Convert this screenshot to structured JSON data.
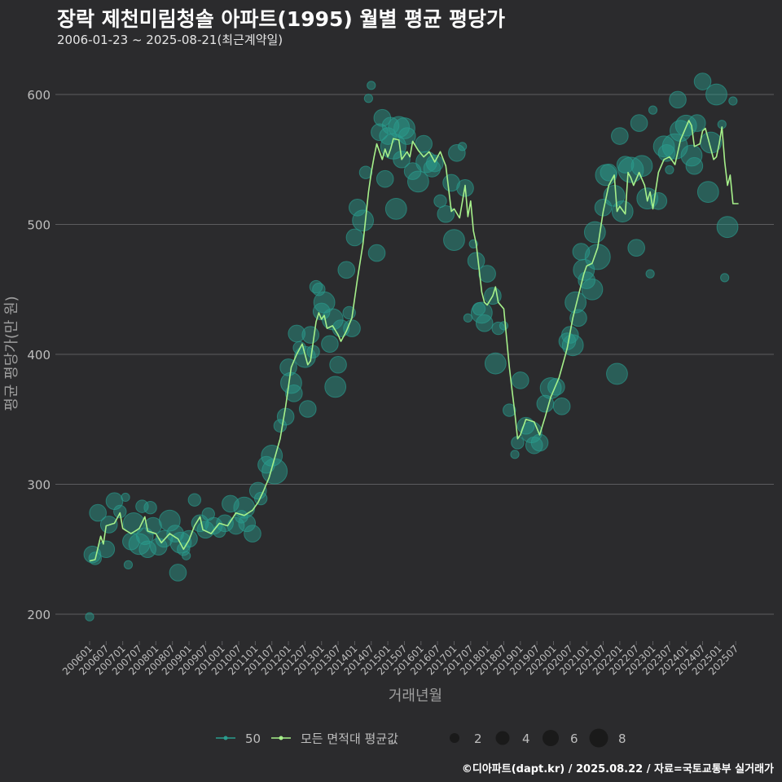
{
  "header": {
    "title": "장락 제천미림청솔 아파트(1995) 월별 평균 평당가",
    "subtitle": "2006-01-23 ~ 2025-08-21(최근계약일)"
  },
  "footer": {
    "credit": "©디아파트(dapt.kr) / 2025.08.22 / 자료=국토교통부 실거래가"
  },
  "colors": {
    "background": "#2b2b2d",
    "grid": "#5c5c5f",
    "line": "#a6f08a",
    "points": "#2a9d8f",
    "text": "#bdbdbd"
  },
  "chart_data": {
    "type": "line",
    "xlabel": "거래년월",
    "ylabel": "평균 평당가(만 원)",
    "ylim": [
      190,
      620
    ],
    "yticks": [
      200,
      300,
      400,
      500,
      600
    ],
    "grid": true,
    "legend_placement": "bottom",
    "x_tick_labels": [
      "200601",
      "200607",
      "200701",
      "200707",
      "200801",
      "200807",
      "200901",
      "200907",
      "201001",
      "201007",
      "201101",
      "201107",
      "201201",
      "201207",
      "201301",
      "201307",
      "201401",
      "201407",
      "201501",
      "201507",
      "201601",
      "201607",
      "201701",
      "201707",
      "201801",
      "201807",
      "201901",
      "201907",
      "202001",
      "202007",
      "202101",
      "202107",
      "202201",
      "202207",
      "202301",
      "202307",
      "202401",
      "202407",
      "202501",
      "202507"
    ],
    "legend": {
      "series": [
        {
          "label": "50",
          "kind": "points"
        },
        {
          "label": "모든 면적대 평균값",
          "kind": "line"
        }
      ],
      "size_title": "",
      "sizes": [
        2,
        4,
        6,
        8
      ]
    },
    "line_keypoints": [
      [
        "200601",
        241
      ],
      [
        "200603",
        242
      ],
      [
        "200605",
        260
      ],
      [
        "200606",
        254
      ],
      [
        "200607",
        268
      ],
      [
        "200610",
        270
      ],
      [
        "200612",
        278
      ],
      [
        "200701",
        266
      ],
      [
        "200704",
        262
      ],
      [
        "200707",
        266
      ],
      [
        "200709",
        275
      ],
      [
        "200710",
        264
      ],
      [
        "200801",
        262
      ],
      [
        "200803",
        255
      ],
      [
        "200806",
        262
      ],
      [
        "200809",
        258
      ],
      [
        "200811",
        250
      ],
      [
        "200901",
        257
      ],
      [
        "200903",
        268
      ],
      [
        "200905",
        275
      ],
      [
        "200906",
        265
      ],
      [
        "200909",
        262
      ],
      [
        "200912",
        270
      ],
      [
        "201003",
        268
      ],
      [
        "201006",
        278
      ],
      [
        "201009",
        276
      ],
      [
        "201012",
        280
      ],
      [
        "201102",
        286
      ],
      [
        "201104",
        295
      ],
      [
        "201106",
        305
      ],
      [
        "201108",
        320
      ],
      [
        "201110",
        335
      ],
      [
        "201112",
        360
      ],
      [
        "201202",
        390
      ],
      [
        "201204",
        400
      ],
      [
        "201206",
        408
      ],
      [
        "201208",
        392
      ],
      [
        "201209",
        395
      ],
      [
        "201211",
        425
      ],
      [
        "201212",
        432
      ],
      [
        "201301",
        427
      ],
      [
        "201302",
        430
      ],
      [
        "201303",
        420
      ],
      [
        "201305",
        422
      ],
      [
        "201307",
        415
      ],
      [
        "201308",
        410
      ],
      [
        "201310",
        418
      ],
      [
        "201312",
        428
      ],
      [
        "201402",
        458
      ],
      [
        "201404",
        485
      ],
      [
        "201406",
        525
      ],
      [
        "201407",
        540
      ],
      [
        "201408",
        552
      ],
      [
        "201409",
        562
      ],
      [
        "201410",
        556
      ],
      [
        "201411",
        550
      ],
      [
        "201412",
        558
      ],
      [
        "201501",
        552
      ],
      [
        "201502",
        558
      ],
      [
        "201503",
        566
      ],
      [
        "201505",
        565
      ],
      [
        "201506",
        550
      ],
      [
        "201507",
        553
      ],
      [
        "201508",
        556
      ],
      [
        "201509",
        552
      ],
      [
        "201510",
        564
      ],
      [
        "201512",
        557
      ],
      [
        "201602",
        552
      ],
      [
        "201604",
        556
      ],
      [
        "201606",
        548
      ],
      [
        "201608",
        556
      ],
      [
        "201610",
        545
      ],
      [
        "201612",
        510
      ],
      [
        "201701",
        512
      ],
      [
        "201703",
        505
      ],
      [
        "201705",
        530
      ],
      [
        "201706",
        506
      ],
      [
        "201707",
        518
      ],
      [
        "201708",
        495
      ],
      [
        "201709",
        485
      ],
      [
        "201711",
        448
      ],
      [
        "201712",
        440
      ],
      [
        "201801",
        438
      ],
      [
        "201803",
        445
      ],
      [
        "201804",
        452
      ],
      [
        "201805",
        440
      ],
      [
        "201807",
        435
      ],
      [
        "201809",
        390
      ],
      [
        "201811",
        355
      ],
      [
        "201812",
        335
      ],
      [
        "201901",
        338
      ],
      [
        "201903",
        350
      ],
      [
        "201906",
        348
      ],
      [
        "201908",
        338
      ],
      [
        "201910",
        352
      ],
      [
        "201912",
        367
      ],
      [
        "202003",
        382
      ],
      [
        "202006",
        405
      ],
      [
        "202008",
        428
      ],
      [
        "202010",
        445
      ],
      [
        "202012",
        462
      ],
      [
        "202101",
        468
      ],
      [
        "202103",
        470
      ],
      [
        "202105",
        482
      ],
      [
        "202107",
        510
      ],
      [
        "202109",
        530
      ],
      [
        "202111",
        538
      ],
      [
        "202112",
        510
      ],
      [
        "202201",
        514
      ],
      [
        "202203",
        508
      ],
      [
        "202204",
        540
      ],
      [
        "202205",
        536
      ],
      [
        "202206",
        530
      ],
      [
        "202208",
        540
      ],
      [
        "202210",
        530
      ],
      [
        "202211",
        518
      ],
      [
        "202212",
        525
      ],
      [
        "202301",
        512
      ],
      [
        "202303",
        540
      ],
      [
        "202305",
        550
      ],
      [
        "202307",
        552
      ],
      [
        "202309",
        546
      ],
      [
        "202311",
        565
      ],
      [
        "202401",
        575
      ],
      [
        "202402",
        580
      ],
      [
        "202403",
        576
      ],
      [
        "202404",
        560
      ],
      [
        "202406",
        562
      ],
      [
        "202407",
        572
      ],
      [
        "202408",
        574
      ],
      [
        "202409",
        566
      ],
      [
        "202411",
        550
      ],
      [
        "202412",
        552
      ],
      [
        "202501",
        562
      ],
      [
        "202502",
        575
      ],
      [
        "202503",
        548
      ],
      [
        "202504",
        530
      ],
      [
        "202505",
        538
      ],
      [
        "202506",
        516
      ],
      [
        "202508",
        516
      ]
    ],
    "points": [
      [
        "200601",
        198,
        1
      ],
      [
        "200602",
        246,
        3
      ],
      [
        "200603",
        243,
        2
      ],
      [
        "200604",
        278,
        3
      ],
      [
        "200607",
        250,
        3
      ],
      [
        "200608",
        269,
        3
      ],
      [
        "200610",
        287,
        3
      ],
      [
        "200612",
        279,
        2
      ],
      [
        "200702",
        290,
        1
      ],
      [
        "200703",
        238,
        1
      ],
      [
        "200704",
        256,
        3
      ],
      [
        "200705",
        270,
        4
      ],
      [
        "200707",
        254,
        4
      ],
      [
        "200708",
        283,
        2
      ],
      [
        "200709",
        260,
        3
      ],
      [
        "200710",
        250,
        3
      ],
      [
        "200711",
        282,
        2
      ],
      [
        "200712",
        268,
        3
      ],
      [
        "200802",
        252,
        3
      ],
      [
        "200804",
        258,
        3
      ],
      [
        "200806",
        272,
        4
      ],
      [
        "200808",
        262,
        3
      ],
      [
        "200809",
        232,
        3
      ],
      [
        "200810",
        255,
        4
      ],
      [
        "200811",
        250,
        2
      ],
      [
        "200812",
        245,
        1
      ],
      [
        "200901",
        258,
        3
      ],
      [
        "200903",
        288,
        2
      ],
      [
        "200905",
        270,
        3
      ],
      [
        "200907",
        265,
        3
      ],
      [
        "200908",
        277,
        2
      ],
      [
        "200910",
        268,
        3
      ],
      [
        "200912",
        264,
        2
      ],
      [
        "201002",
        270,
        3
      ],
      [
        "201004",
        285,
        3
      ],
      [
        "201006",
        268,
        3
      ],
      [
        "201008",
        275,
        2
      ],
      [
        "201009",
        282,
        4
      ],
      [
        "201010",
        270,
        3
      ],
      [
        "201012",
        262,
        3
      ],
      [
        "201102",
        295,
        3
      ],
      [
        "201103",
        289,
        2
      ],
      [
        "201105",
        315,
        3
      ],
      [
        "201107",
        322,
        4
      ],
      [
        "201108",
        310,
        5
      ],
      [
        "201110",
        345,
        2
      ],
      [
        "201112",
        352,
        3
      ],
      [
        "201201",
        390,
        3
      ],
      [
        "201202",
        378,
        4
      ],
      [
        "201203",
        370,
        3
      ],
      [
        "201204",
        416,
        3
      ],
      [
        "201205",
        405,
        2
      ],
      [
        "201207",
        398,
        4
      ],
      [
        "201208",
        358,
        3
      ],
      [
        "201209",
        415,
        3
      ],
      [
        "201210",
        402,
        2
      ],
      [
        "201211",
        452,
        2
      ],
      [
        "201212",
        450,
        2
      ],
      [
        "201301",
        433,
        3
      ],
      [
        "201302",
        440,
        4
      ],
      [
        "201304",
        408,
        3
      ],
      [
        "201305",
        427,
        4
      ],
      [
        "201306",
        375,
        4
      ],
      [
        "201307",
        392,
        3
      ],
      [
        "201308",
        420,
        3
      ],
      [
        "201310",
        465,
        3
      ],
      [
        "201311",
        432,
        2
      ],
      [
        "201312",
        420,
        3
      ],
      [
        "201401",
        490,
        3
      ],
      [
        "201402",
        513,
        3
      ],
      [
        "201404",
        503,
        4
      ],
      [
        "201405",
        540,
        2
      ],
      [
        "201406",
        597,
        1
      ],
      [
        "201407",
        607,
        1
      ],
      [
        "201409",
        478,
        3
      ],
      [
        "201410",
        571,
        3
      ],
      [
        "201411",
        582,
        3
      ],
      [
        "201412",
        535,
        3
      ],
      [
        "201501",
        568,
        3
      ],
      [
        "201502",
        576,
        3
      ],
      [
        "201503",
        560,
        5
      ],
      [
        "201504",
        512,
        4
      ],
      [
        "201505",
        575,
        4
      ],
      [
        "201506",
        550,
        3
      ],
      [
        "201507",
        574,
        4
      ],
      [
        "201508",
        568,
        3
      ],
      [
        "201510",
        541,
        3
      ],
      [
        "201512",
        533,
        4
      ],
      [
        "201602",
        562,
        3
      ],
      [
        "201603",
        548,
        4
      ],
      [
        "201605",
        543,
        3
      ],
      [
        "201606",
        547,
        3
      ],
      [
        "201608",
        518,
        2
      ],
      [
        "201610",
        508,
        3
      ],
      [
        "201612",
        532,
        3
      ],
      [
        "201701",
        488,
        4
      ],
      [
        "201702",
        555,
        3
      ],
      [
        "201704",
        560,
        1
      ],
      [
        "201705",
        528,
        3
      ],
      [
        "201706",
        428,
        1
      ],
      [
        "201708",
        485,
        1
      ],
      [
        "201709",
        472,
        3
      ],
      [
        "201710",
        435,
        2
      ],
      [
        "201711",
        432,
        4
      ],
      [
        "201712",
        424,
        3
      ],
      [
        "201801",
        462,
        3
      ],
      [
        "201803",
        445,
        3
      ],
      [
        "201804",
        393,
        4
      ],
      [
        "201805",
        420,
        2
      ],
      [
        "201807",
        422,
        1
      ],
      [
        "201809",
        357,
        2
      ],
      [
        "201811",
        323,
        1
      ],
      [
        "201812",
        332,
        2
      ],
      [
        "201901",
        380,
        3
      ],
      [
        "201903",
        345,
        3
      ],
      [
        "201905",
        340,
        4
      ],
      [
        "201906",
        330,
        3
      ],
      [
        "201908",
        332,
        3
      ],
      [
        "201910",
        362,
        3
      ],
      [
        "201912",
        374,
        4
      ],
      [
        "202002",
        375,
        3
      ],
      [
        "202004",
        360,
        3
      ],
      [
        "202006",
        410,
        3
      ],
      [
        "202007",
        415,
        3
      ],
      [
        "202008",
        407,
        4
      ],
      [
        "202009",
        440,
        4
      ],
      [
        "202010",
        428,
        3
      ],
      [
        "202011",
        479,
        3
      ],
      [
        "202012",
        465,
        4
      ],
      [
        "202101",
        457,
        3
      ],
      [
        "202103",
        450,
        4
      ],
      [
        "202104",
        494,
        4
      ],
      [
        "202105",
        475,
        5
      ],
      [
        "202107",
        513,
        3
      ],
      [
        "202108",
        538,
        4
      ],
      [
        "202109",
        540,
        3
      ],
      [
        "202111",
        522,
        4
      ],
      [
        "202112",
        385,
        4
      ],
      [
        "202201",
        568,
        3
      ],
      [
        "202202",
        510,
        4
      ],
      [
        "202203",
        546,
        3
      ],
      [
        "202205",
        542,
        5
      ],
      [
        "202207",
        482,
        3
      ],
      [
        "202208",
        578,
        3
      ],
      [
        "202209",
        545,
        4
      ],
      [
        "202211",
        520,
        4
      ],
      [
        "202212",
        462,
        1
      ],
      [
        "202301",
        588,
        1
      ],
      [
        "202303",
        518,
        3
      ],
      [
        "202305",
        560,
        4
      ],
      [
        "202306",
        555,
        3
      ],
      [
        "202307",
        542,
        1
      ],
      [
        "202309",
        560,
        5
      ],
      [
        "202310",
        596,
        3
      ],
      [
        "202311",
        572,
        4
      ],
      [
        "202401",
        576,
        4
      ],
      [
        "202403",
        553,
        4
      ],
      [
        "202404",
        545,
        3
      ],
      [
        "202405",
        578,
        3
      ],
      [
        "202407",
        610,
        3
      ],
      [
        "202409",
        525,
        4
      ],
      [
        "202410",
        563,
        4
      ],
      [
        "202412",
        600,
        4
      ],
      [
        "202502",
        577,
        1
      ],
      [
        "202503",
        459,
        1
      ],
      [
        "202504",
        498,
        4
      ],
      [
        "202506",
        595,
        1
      ]
    ]
  }
}
